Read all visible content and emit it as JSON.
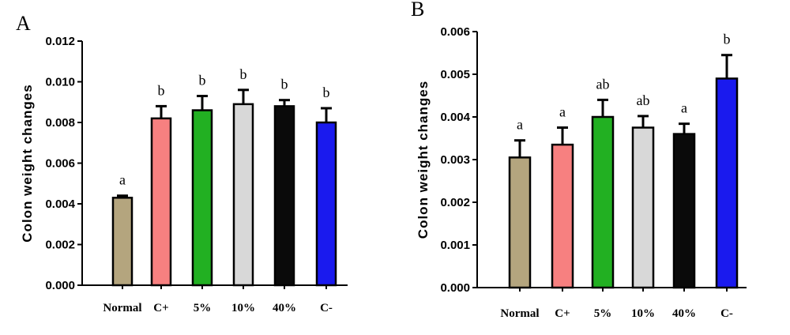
{
  "chart_data": [
    {
      "panel": "A",
      "type": "bar",
      "ylabel": "Colon weight changes",
      "ylim": [
        0,
        0.012
      ],
      "yticks": [
        "0.000",
        "0.002",
        "0.004",
        "0.006",
        "0.008",
        "0.010",
        "0.012"
      ],
      "categories": [
        "Normal",
        "C+",
        "5%",
        "10%",
        "40%",
        "C-"
      ],
      "values": [
        0.0043,
        0.0082,
        0.0086,
        0.0089,
        0.0088,
        0.008
      ],
      "errors": [
        0.0001,
        0.0006,
        0.0007,
        0.0007,
        0.0003,
        0.0007
      ],
      "significance": [
        "a",
        "b",
        "b",
        "b",
        "b",
        "b"
      ],
      "colors": [
        "#b4a57e",
        "#f78080",
        "#22b022",
        "#d8d8d8",
        "#0a0a0a",
        "#1a1aee"
      ]
    },
    {
      "panel": "B",
      "type": "bar",
      "ylabel": "Colon weight changes",
      "ylim": [
        0,
        0.006
      ],
      "yticks": [
        "0.000",
        "0.001",
        "0.002",
        "0.003",
        "0.004",
        "0.005",
        "0.006"
      ],
      "categories": [
        "Normal",
        "C+",
        "5%",
        "10%",
        "40%",
        "C-"
      ],
      "values": [
        0.00305,
        0.00335,
        0.004,
        0.00375,
        0.0036,
        0.0049
      ],
      "errors": [
        0.0004,
        0.0004,
        0.0004,
        0.00027,
        0.00024,
        0.00055
      ],
      "significance": [
        "a",
        "a",
        "ab",
        "ab",
        "a",
        "b"
      ],
      "colors": [
        "#b4a57e",
        "#f78080",
        "#22b022",
        "#d8d8d8",
        "#0a0a0a",
        "#1a1aee"
      ]
    }
  ]
}
